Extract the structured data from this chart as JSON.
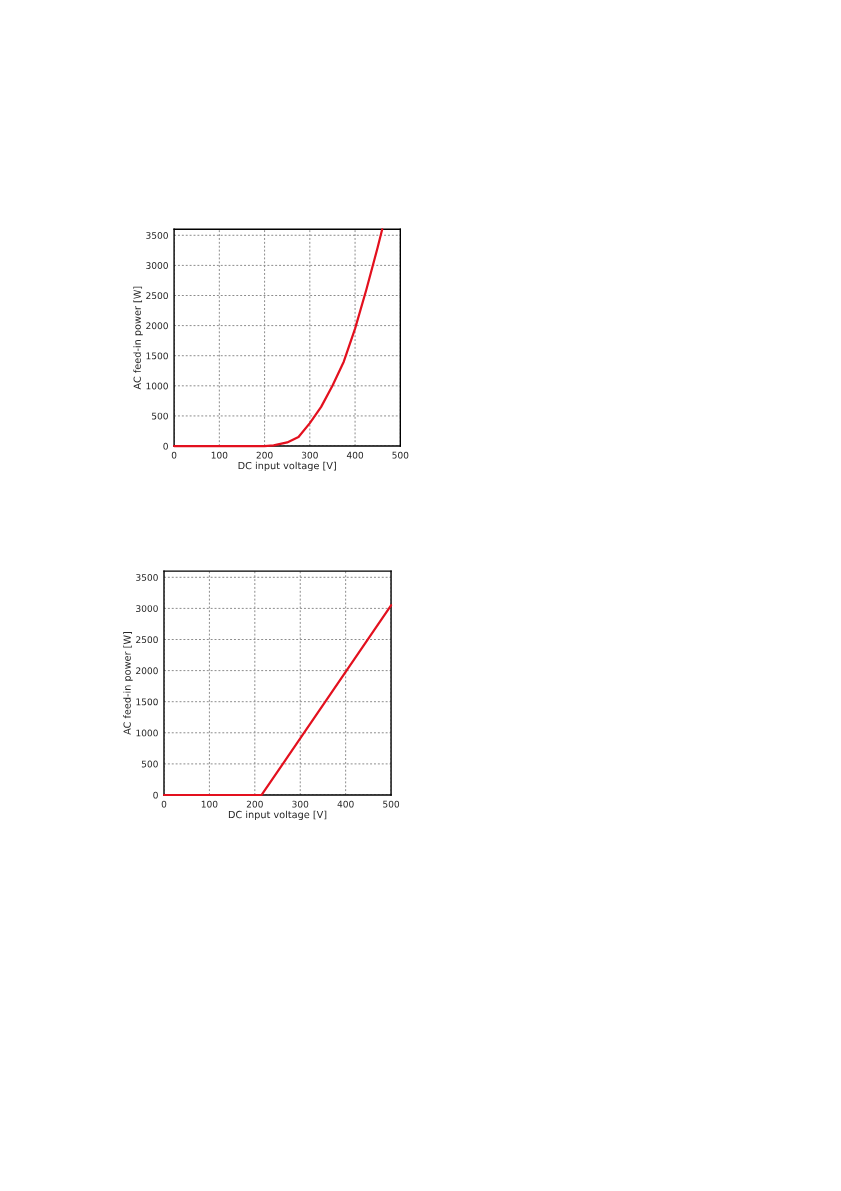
{
  "chart_data": [
    {
      "type": "line",
      "xlabel": "DC input voltage [V]",
      "ylabel": "AC feed-in power [W]",
      "xlim": [
        0,
        500
      ],
      "ylim": [
        0,
        3600
      ],
      "xticks": [
        0,
        100,
        200,
        300,
        400,
        500
      ],
      "yticks": [
        0,
        500,
        1000,
        1500,
        2000,
        2500,
        3000,
        3500
      ],
      "grid": true,
      "line_style": "solid",
      "series": [
        {
          "color": "#e3101e",
          "x": [
            0,
            100,
            200,
            220,
            250,
            275,
            300,
            325,
            350,
            375,
            400,
            425,
            450,
            460
          ],
          "values": [
            0,
            0,
            0,
            10,
            60,
            150,
            380,
            650,
            1000,
            1400,
            1950,
            2600,
            3300,
            3600
          ]
        }
      ]
    },
    {
      "type": "line",
      "xlabel": "DC input voltage [V]",
      "ylabel": "AC feed-in power [W]",
      "xlim": [
        0,
        500
      ],
      "ylim": [
        0,
        3600
      ],
      "xticks": [
        0,
        100,
        200,
        300,
        400,
        500
      ],
      "yticks": [
        0,
        500,
        1000,
        1500,
        2000,
        2500,
        3000,
        3500
      ],
      "grid": true,
      "line_style": "solid",
      "series": [
        {
          "color": "#e3101e",
          "x": [
            0,
            100,
            215,
            300,
            400,
            500
          ],
          "values": [
            0,
            0,
            0,
            910,
            1980,
            3050
          ]
        }
      ]
    }
  ]
}
